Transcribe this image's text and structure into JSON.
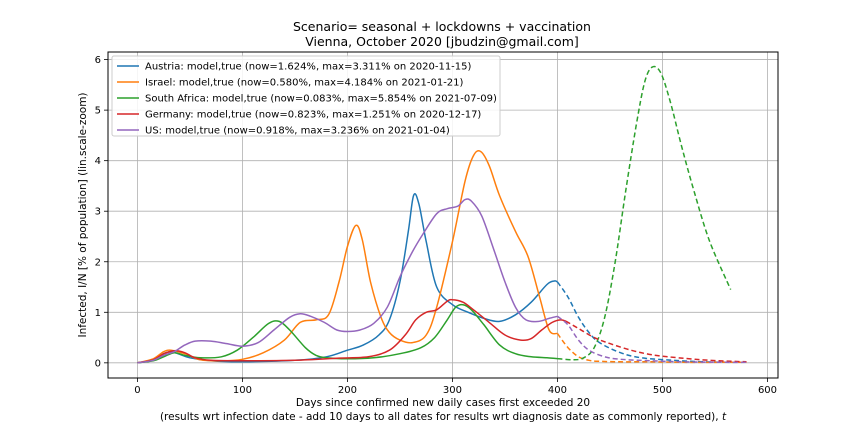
{
  "chart_data": {
    "type": "line",
    "title": "Scenario= seasonal + lockdowns + vaccination",
    "subtitle": "Vienna, October 2020 [jbudzin@gmail.com]",
    "xlabel": "Days since confirmed new daily cases first exceeded 20",
    "xlabel2": "(results wrt infection date - add 10 days to all dates for results wrt diagnosis date as commonly reported), t",
    "ylabel": "Infected, I/N [% of population] (lin.scale-zoom)",
    "xlim": [
      -28,
      610
    ],
    "ylim": [
      -0.3,
      6.15
    ],
    "xticks": [
      0,
      100,
      200,
      300,
      400,
      500,
      600
    ],
    "yticks": [
      0,
      1,
      2,
      3,
      4,
      5,
      6
    ],
    "grid": true,
    "legend_position": "top-left",
    "series": [
      {
        "name": "Austria: model,true (now=1.624%, max=3.311% on 2020-11-15)",
        "color": "#1f77b4",
        "solid": [
          [
            0,
            0
          ],
          [
            15,
            0.05
          ],
          [
            25,
            0.18
          ],
          [
            32,
            0.22
          ],
          [
            40,
            0.17
          ],
          [
            50,
            0.1
          ],
          [
            70,
            0.04
          ],
          [
            100,
            0.02
          ],
          [
            150,
            0.05
          ],
          [
            180,
            0.12
          ],
          [
            200,
            0.25
          ],
          [
            215,
            0.35
          ],
          [
            230,
            0.55
          ],
          [
            240,
            0.85
          ],
          [
            250,
            1.6
          ],
          [
            258,
            2.6
          ],
          [
            263,
            3.31
          ],
          [
            268,
            3.15
          ],
          [
            275,
            2.4
          ],
          [
            285,
            1.5
          ],
          [
            300,
            1.15
          ],
          [
            315,
            1.0
          ],
          [
            330,
            0.88
          ],
          [
            345,
            0.82
          ],
          [
            360,
            0.95
          ],
          [
            375,
            1.2
          ],
          [
            390,
            1.55
          ],
          [
            397,
            1.62
          ],
          [
            400,
            1.6
          ]
        ],
        "dashed": [
          [
            400,
            1.6
          ],
          [
            410,
            1.3
          ],
          [
            420,
            0.9
          ],
          [
            430,
            0.6
          ],
          [
            440,
            0.4
          ],
          [
            460,
            0.2
          ],
          [
            480,
            0.1
          ],
          [
            510,
            0.05
          ],
          [
            540,
            0.02
          ],
          [
            570,
            0.01
          ]
        ]
      },
      {
        "name": "Israel: model,true (now=0.580%, max=4.184% on 2021-01-21)",
        "color": "#ff7f0e",
        "solid": [
          [
            0,
            0
          ],
          [
            15,
            0.08
          ],
          [
            25,
            0.22
          ],
          [
            32,
            0.25
          ],
          [
            45,
            0.18
          ],
          [
            60,
            0.06
          ],
          [
            80,
            0.04
          ],
          [
            100,
            0.07
          ],
          [
            120,
            0.2
          ],
          [
            140,
            0.45
          ],
          [
            155,
            0.8
          ],
          [
            170,
            0.85
          ],
          [
            182,
            0.95
          ],
          [
            192,
            1.6
          ],
          [
            200,
            2.3
          ],
          [
            208,
            2.72
          ],
          [
            214,
            2.45
          ],
          [
            222,
            1.6
          ],
          [
            232,
            0.9
          ],
          [
            240,
            0.6
          ],
          [
            250,
            0.45
          ],
          [
            262,
            0.4
          ],
          [
            275,
            0.55
          ],
          [
            285,
            1.1
          ],
          [
            300,
            2.4
          ],
          [
            312,
            3.6
          ],
          [
            320,
            4.1
          ],
          [
            327,
            4.18
          ],
          [
            335,
            3.9
          ],
          [
            345,
            3.3
          ],
          [
            360,
            2.6
          ],
          [
            372,
            2.1
          ],
          [
            383,
            1.3
          ],
          [
            392,
            0.65
          ],
          [
            400,
            0.58
          ]
        ],
        "dashed": [
          [
            400,
            0.58
          ],
          [
            410,
            0.3
          ],
          [
            420,
            0.12
          ],
          [
            430,
            0.05
          ],
          [
            440,
            0.03
          ],
          [
            460,
            0.02
          ],
          [
            490,
            0.02
          ],
          [
            520,
            0.01
          ],
          [
            560,
            0.01
          ],
          [
            580,
            0.01
          ]
        ]
      },
      {
        "name": "South Africa: model,true (now=0.083%, max=5.854% on 2021-07-09)",
        "color": "#2ca02c",
        "solid": [
          [
            0,
            0
          ],
          [
            15,
            0.04
          ],
          [
            25,
            0.12
          ],
          [
            35,
            0.2
          ],
          [
            45,
            0.15
          ],
          [
            60,
            0.1
          ],
          [
            80,
            0.12
          ],
          [
            95,
            0.25
          ],
          [
            110,
            0.5
          ],
          [
            125,
            0.78
          ],
          [
            135,
            0.82
          ],
          [
            145,
            0.65
          ],
          [
            160,
            0.3
          ],
          [
            170,
            0.15
          ],
          [
            180,
            0.1
          ],
          [
            200,
            0.08
          ],
          [
            225,
            0.1
          ],
          [
            250,
            0.18
          ],
          [
            270,
            0.3
          ],
          [
            283,
            0.5
          ],
          [
            295,
            0.85
          ],
          [
            303,
            1.1
          ],
          [
            310,
            1.15
          ],
          [
            318,
            1.05
          ],
          [
            330,
            0.75
          ],
          [
            345,
            0.35
          ],
          [
            360,
            0.18
          ],
          [
            375,
            0.12
          ],
          [
            390,
            0.1
          ],
          [
            400,
            0.083
          ]
        ],
        "dashed": [
          [
            400,
            0.083
          ],
          [
            415,
            0.06
          ],
          [
            425,
            0.1
          ],
          [
            435,
            0.3
          ],
          [
            445,
            0.9
          ],
          [
            455,
            2.0
          ],
          [
            465,
            3.4
          ],
          [
            475,
            4.7
          ],
          [
            483,
            5.55
          ],
          [
            490,
            5.85
          ],
          [
            498,
            5.75
          ],
          [
            507,
            5.2
          ],
          [
            518,
            4.3
          ],
          [
            530,
            3.4
          ],
          [
            545,
            2.4
          ],
          [
            565,
            1.45
          ]
        ]
      },
      {
        "name": "Germany: model,true (now=0.823%, max=1.251% on 2020-12-17)",
        "color": "#d62728",
        "solid": [
          [
            0,
            0
          ],
          [
            15,
            0.06
          ],
          [
            25,
            0.18
          ],
          [
            35,
            0.24
          ],
          [
            45,
            0.2
          ],
          [
            55,
            0.1
          ],
          [
            70,
            0.05
          ],
          [
            100,
            0.04
          ],
          [
            150,
            0.05
          ],
          [
            190,
            0.09
          ],
          [
            220,
            0.12
          ],
          [
            240,
            0.25
          ],
          [
            255,
            0.55
          ],
          [
            265,
            0.85
          ],
          [
            275,
            1.0
          ],
          [
            285,
            1.05
          ],
          [
            295,
            1.22
          ],
          [
            300,
            1.25
          ],
          [
            310,
            1.2
          ],
          [
            320,
            1.05
          ],
          [
            335,
            0.8
          ],
          [
            350,
            0.55
          ],
          [
            365,
            0.45
          ],
          [
            375,
            0.48
          ],
          [
            385,
            0.65
          ],
          [
            395,
            0.8
          ],
          [
            403,
            0.85
          ],
          [
            408,
            0.823
          ]
        ],
        "dashed": [
          [
            408,
            0.823
          ],
          [
            420,
            0.68
          ],
          [
            435,
            0.5
          ],
          [
            450,
            0.38
          ],
          [
            470,
            0.25
          ],
          [
            490,
            0.16
          ],
          [
            515,
            0.1
          ],
          [
            545,
            0.05
          ],
          [
            580,
            0.02
          ]
        ]
      },
      {
        "name": "US: model,true (now=0.918%, max=3.236% on 2021-01-04)",
        "color": "#9467bd",
        "solid": [
          [
            0,
            0
          ],
          [
            15,
            0.05
          ],
          [
            25,
            0.15
          ],
          [
            35,
            0.22
          ],
          [
            45,
            0.35
          ],
          [
            55,
            0.43
          ],
          [
            70,
            0.43
          ],
          [
            85,
            0.38
          ],
          [
            100,
            0.33
          ],
          [
            115,
            0.4
          ],
          [
            130,
            0.65
          ],
          [
            145,
            0.9
          ],
          [
            155,
            0.97
          ],
          [
            165,
            0.92
          ],
          [
            178,
            0.8
          ],
          [
            190,
            0.65
          ],
          [
            200,
            0.62
          ],
          [
            212,
            0.65
          ],
          [
            225,
            0.78
          ],
          [
            238,
            1.1
          ],
          [
            250,
            1.7
          ],
          [
            262,
            2.2
          ],
          [
            272,
            2.55
          ],
          [
            285,
            2.95
          ],
          [
            295,
            3.05
          ],
          [
            305,
            3.1
          ],
          [
            312,
            3.23
          ],
          [
            318,
            3.2
          ],
          [
            328,
            2.9
          ],
          [
            340,
            2.2
          ],
          [
            350,
            1.6
          ],
          [
            360,
            1.1
          ],
          [
            370,
            0.85
          ],
          [
            382,
            0.82
          ],
          [
            392,
            0.88
          ],
          [
            400,
            0.92
          ]
        ],
        "dashed": [
          [
            400,
            0.92
          ],
          [
            410,
            0.75
          ],
          [
            420,
            0.45
          ],
          [
            430,
            0.25
          ],
          [
            445,
            0.12
          ],
          [
            460,
            0.07
          ],
          [
            490,
            0.04
          ],
          [
            520,
            0.02
          ],
          [
            560,
            0.01
          ],
          [
            580,
            0.01
          ]
        ]
      }
    ]
  }
}
